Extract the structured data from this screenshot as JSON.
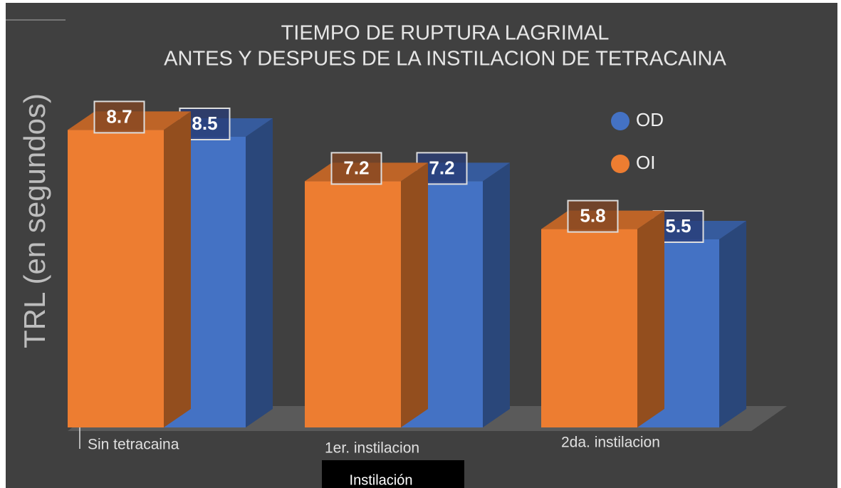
{
  "chart_data": {
    "type": "bar3d",
    "title": "TIEMPO DE RUPTURA LAGRIMAL",
    "subtitle": "ANTES Y DESPUES DE LA INSTILACION DE TETRACAINA",
    "y_label": "TRL  (en segundos)",
    "x_label": "Instilación",
    "categories": [
      "Sin tetracaina",
      "1er. instilacion",
      "2da. instilacion"
    ],
    "series": [
      {
        "name": "OI",
        "color": "#ed7d31",
        "values": [
          8.7,
          7.2,
          5.8
        ]
      },
      {
        "name": "OD",
        "color": "#4472c4",
        "values": [
          8.5,
          7.2,
          5.5
        ]
      }
    ],
    "ylim": [
      0,
      10
    ]
  }
}
